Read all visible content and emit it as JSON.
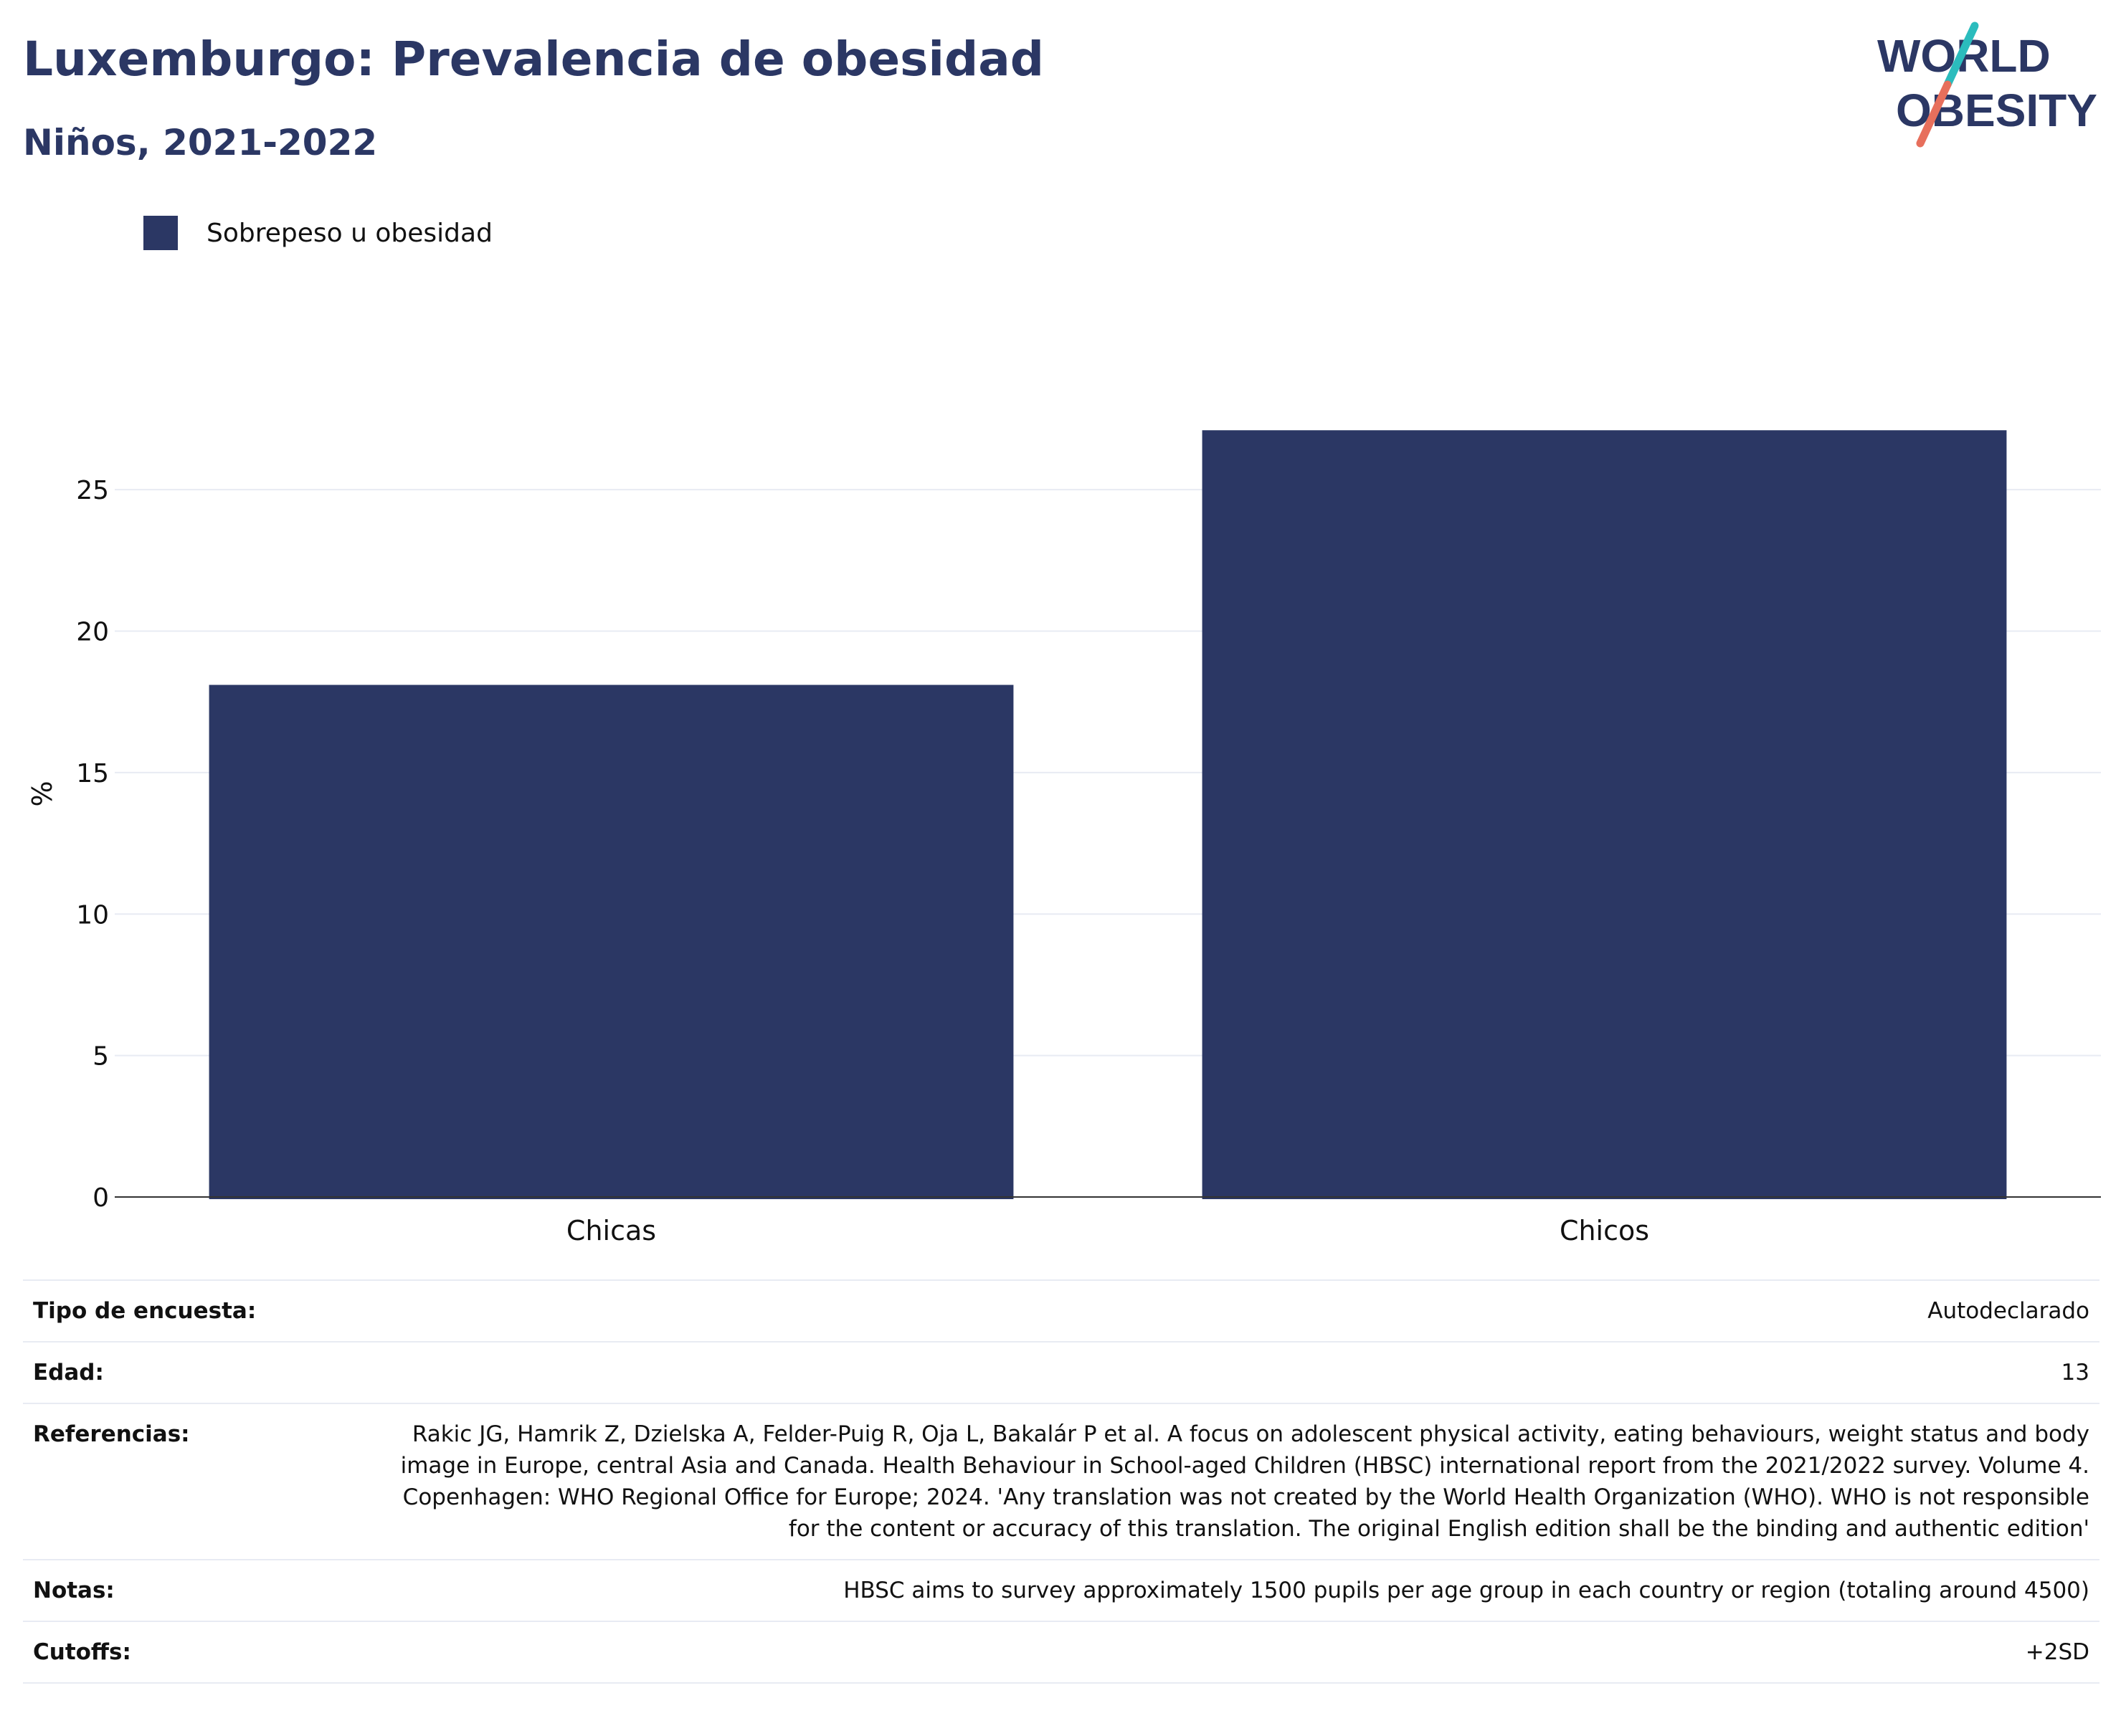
{
  "header": {
    "title": "Luxemburgo: Prevalencia de obesidad",
    "subtitle": "Niños, 2021-2022"
  },
  "logo": {
    "line1": "WORLD",
    "line2": "OBESITY",
    "colors": {
      "text": "#2b3764",
      "slash_top": "#2bbcbd",
      "slash_bottom": "#e76f5c"
    }
  },
  "colors": {
    "bar": "#2b3764",
    "grid": "#e8ebf3",
    "axis": "#333333"
  },
  "chart_data": {
    "type": "bar",
    "categories": [
      "Chicas",
      "Chicos"
    ],
    "series": [
      {
        "name": "Sobrepeso u obesidad",
        "values": [
          18.1,
          27.1
        ]
      }
    ],
    "ylabel": "%",
    "xlabel": "",
    "ylim": [
      0,
      28.5
    ],
    "yticks": [
      0,
      5,
      10,
      15,
      20,
      25
    ],
    "grid": true,
    "legend": "top-left"
  },
  "info": {
    "rows": [
      {
        "label": "Tipo de encuesta:",
        "value": "Autodeclarado"
      },
      {
        "label": "Edad:",
        "value": "13"
      },
      {
        "label": "Referencias:",
        "value": "Rakic JG, Hamrik Z, Dzielska A, Felder-Puig R, Oja L, Bakalár P et al. A focus on adolescent physical activity, eating behaviours, weight status and body image in Europe, central Asia and Canada. Health Behaviour in School-aged Children (HBSC) international report from the 2021/2022 survey. Volume 4. Copenhagen: WHO Regional Office for Europe; 2024. 'Any translation was not created by the World Health Organization (WHO). WHO is not responsible for the content or accuracy of this translation. The original English edition shall be the binding and authentic edition'"
      },
      {
        "label": "Notas:",
        "value": "HBSC aims to survey approximately 1500 pupils per age group in each country or region (totaling around 4500)"
      },
      {
        "label": "Cutoffs:",
        "value": "+2SD"
      }
    ]
  }
}
